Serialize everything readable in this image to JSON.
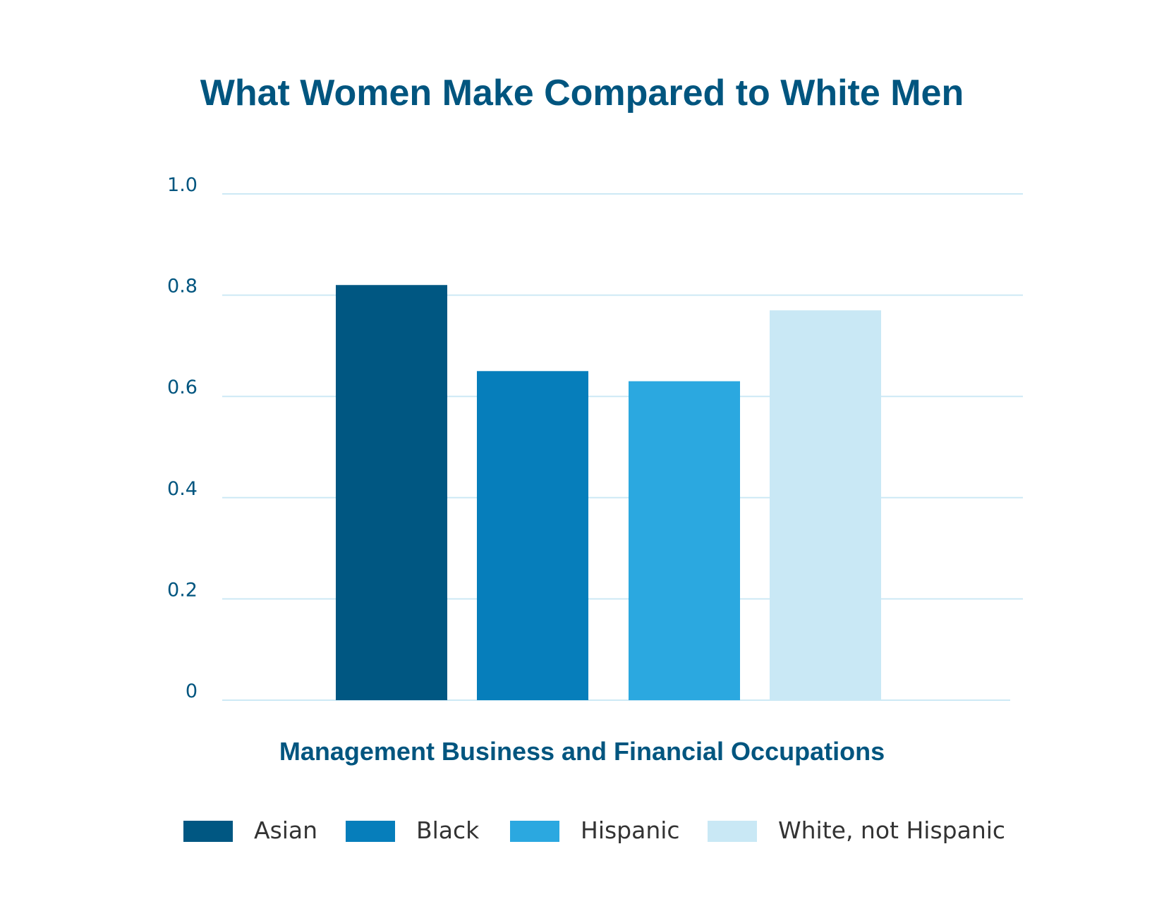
{
  "chart_data": {
    "type": "bar",
    "title": "What Women Make Compared to White Men",
    "xlabel": "Management Business and Financial Occupations",
    "ylabel": "",
    "ylim": [
      0,
      1.0
    ],
    "yticks": [
      "0",
      "0.2",
      "0.4",
      "0.6",
      "0.8",
      "1.0"
    ],
    "ytick_values": [
      0,
      0.2,
      0.4,
      0.6,
      0.8,
      1.0
    ],
    "grid": true,
    "legend_position": "bottom",
    "categories": [
      "Management Business and Financial Occupations"
    ],
    "series": [
      {
        "name": "Asian",
        "values": [
          0.82
        ],
        "color": "#005782"
      },
      {
        "name": "Black",
        "values": [
          0.65
        ],
        "color": "#067ebb"
      },
      {
        "name": "Hispanic",
        "values": [
          0.63
        ],
        "color": "#2ba8e0"
      },
      {
        "name": "White, not Hispanic",
        "values": [
          0.77
        ],
        "color": "#c9e8f5"
      }
    ],
    "gridline_color": "#cde9f5"
  }
}
